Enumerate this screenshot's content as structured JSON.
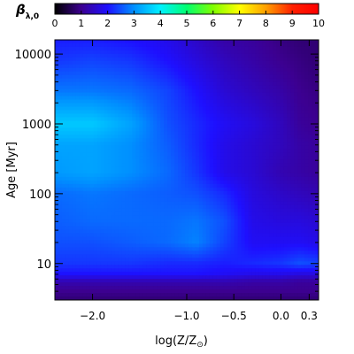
{
  "chart_data": {
    "type": "heatmap",
    "colorbar": {
      "label": "β",
      "label_subscript": "λ,0",
      "min": 0,
      "max": 10,
      "ticks": [
        "0",
        "1",
        "2",
        "3",
        "4",
        "5",
        "6",
        "7",
        "8",
        "9",
        "10"
      ],
      "colormap": [
        "#000000",
        "#3c0090",
        "#1e10ff",
        "#0090ff",
        "#00f0ff",
        "#00ff70",
        "#80ff00",
        "#ffff00",
        "#ffa000",
        "#ff2000",
        "#ff0000"
      ]
    },
    "x_axis": {
      "label": "log(Z/Z",
      "label_subscript": "⊙",
      "label_close": ")",
      "range": [
        -2.4,
        0.4
      ],
      "ticks": [
        {
          "value": -2.0,
          "label": "−2.0"
        },
        {
          "value": -1.0,
          "label": "−1.0"
        },
        {
          "value": -0.5,
          "label": "−0.5"
        },
        {
          "value": 0.0,
          "label": "0.0"
        },
        {
          "value": 0.3,
          "label": "0.3"
        }
      ]
    },
    "y_axis": {
      "label": "Age [Myr]",
      "scale": "log",
      "range": [
        3,
        16000
      ],
      "ticks": [
        {
          "value": 10,
          "label": "10"
        },
        {
          "value": 100,
          "label": "100"
        },
        {
          "value": 1000,
          "label": "1000"
        },
        {
          "value": 10000,
          "label": "10000"
        }
      ]
    },
    "metallicity_grid": [
      -2.4,
      -2.0,
      -1.6,
      -1.2,
      -0.9,
      -0.6,
      -0.3,
      0.0,
      0.2,
      0.4
    ],
    "age_grid": [
      3,
      4,
      5.5,
      7,
      10,
      20,
      40,
      100,
      200,
      500,
      1000,
      3000,
      8000,
      16000
    ],
    "beta_values": [
      [
        0.8,
        0.8,
        0.8,
        0.8,
        0.8,
        0.8,
        0.8,
        0.8,
        0.8,
        0.8
      ],
      [
        1.0,
        1.0,
        1.0,
        1.0,
        1.0,
        1.0,
        1.0,
        1.0,
        1.0,
        1.0
      ],
      [
        1.3,
        1.3,
        1.3,
        1.3,
        1.3,
        1.3,
        1.2,
        1.2,
        1.1,
        1.1
      ],
      [
        2.0,
        2.0,
        2.0,
        2.0,
        2.0,
        1.9,
        1.8,
        1.8,
        1.7,
        1.7
      ],
      [
        2.3,
        2.3,
        2.3,
        2.2,
        2.2,
        2.1,
        2.2,
        2.3,
        2.5,
        2.4
      ],
      [
        2.5,
        2.5,
        2.6,
        2.7,
        2.9,
        2.4,
        1.9,
        1.9,
        1.9,
        1.8
      ],
      [
        2.6,
        2.7,
        2.7,
        2.7,
        2.8,
        2.5,
        1.8,
        1.7,
        1.7,
        1.6
      ],
      [
        2.7,
        2.8,
        2.7,
        2.6,
        2.5,
        2.2,
        1.7,
        1.5,
        1.4,
        1.3
      ],
      [
        3.1,
        3.2,
        3.0,
        2.7,
        2.3,
        1.8,
        1.6,
        1.3,
        1.2,
        1.1
      ],
      [
        3.2,
        3.2,
        3.0,
        2.6,
        2.2,
        1.8,
        1.6,
        1.4,
        1.2,
        1.1
      ],
      [
        3.6,
        3.6,
        3.2,
        2.5,
        2.2,
        1.9,
        1.7,
        1.4,
        1.1,
        1.0
      ],
      [
        2.8,
        2.8,
        2.7,
        2.4,
        2.0,
        1.6,
        1.4,
        1.2,
        1.0,
        0.9
      ],
      [
        2.3,
        2.4,
        2.3,
        2.0,
        1.7,
        1.4,
        1.2,
        1.0,
        0.9,
        0.8
      ],
      [
        2.1,
        2.1,
        2.0,
        1.8,
        1.5,
        1.2,
        1.1,
        0.9,
        0.8,
        0.8
      ]
    ]
  }
}
